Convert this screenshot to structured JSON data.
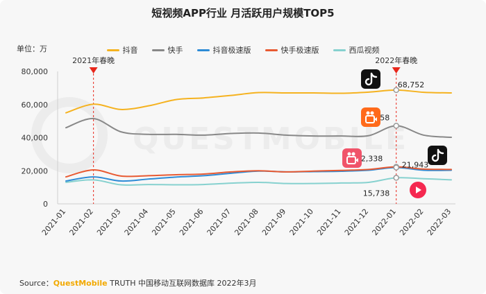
{
  "chart_data": {
    "type": "line",
    "title": "短视频APP行业 月活跃用户规模TOP5",
    "unit_label": "单位：万",
    "categories": [
      "2021-01",
      "2021-02",
      "2021-03",
      "2021-04",
      "2021-05",
      "2021-06",
      "2021-07",
      "2021-08",
      "2021-09",
      "2021-10",
      "2021-11",
      "2021-12",
      "2022-01",
      "2022-02",
      "2022-03"
    ],
    "ylim": [
      0,
      80000
    ],
    "yticks": [
      0,
      20000,
      40000,
      60000,
      80000
    ],
    "ytick_labels": [
      "0",
      "20,000",
      "40,000",
      "60,000",
      "80,000"
    ],
    "grid": false,
    "legend_position": "top-center",
    "series": [
      {
        "name": "抖音",
        "color": "#f5b21f",
        "values": [
          55000,
          60200,
          57000,
          59200,
          63000,
          64000,
          65500,
          67200,
          67000,
          67000,
          66800,
          67500,
          68752,
          67400,
          67000
        ]
      },
      {
        "name": "快手",
        "color": "#888888",
        "values": [
          46000,
          51500,
          43500,
          42000,
          42000,
          41500,
          42500,
          42800,
          41500,
          41000,
          41000,
          41200,
          47158,
          41500,
          40200
        ]
      },
      {
        "name": "抖音极速版",
        "color": "#2d8bd6",
        "values": [
          13800,
          16300,
          13800,
          15000,
          16200,
          17000,
          18500,
          19800,
          19300,
          19500,
          19700,
          20300,
          21943,
          20300,
          20300
        ]
      },
      {
        "name": "快手极速版",
        "color": "#e85a32",
        "values": [
          16300,
          20500,
          16800,
          17000,
          17600,
          18000,
          19300,
          20000,
          19300,
          19800,
          20200,
          20800,
          22338,
          21000,
          20800
        ]
      },
      {
        "name": "西瓜视频",
        "color": "#86d1cf",
        "values": [
          13000,
          14500,
          11500,
          11700,
          11500,
          11700,
          12500,
          13000,
          12300,
          12300,
          12600,
          13000,
          15738,
          15200,
          14500
        ]
      }
    ],
    "annotations": [
      {
        "text": "2021年春晚",
        "category": "2021-02"
      },
      {
        "text": "2022年春晚",
        "category": "2022-01"
      }
    ],
    "data_labels": [
      {
        "series": "抖音",
        "category": "2022-01",
        "text": "68,752"
      },
      {
        "series": "快手",
        "category": "2022-01",
        "text": "47,158"
      },
      {
        "series": "快手极速版",
        "category": "2022-01",
        "text": "22,338"
      },
      {
        "series": "抖音极速版",
        "category": "2022-01",
        "text": "21,943"
      },
      {
        "series": "西瓜视频",
        "category": "2022-01",
        "text": "15,738"
      }
    ],
    "watermark": "QUESTMOBILE"
  },
  "source": {
    "prefix": "Source：",
    "brand": "QuestMobile",
    "rest": " TRUTH 中国移动互联网数据库 2022年3月"
  },
  "app_icons": [
    {
      "name": "douyin-icon",
      "color": "#111111"
    },
    {
      "name": "kuaishou-icon",
      "color": "#ff6a1a"
    },
    {
      "name": "kuaishou-lite-icon",
      "color": "#f0546a"
    },
    {
      "name": "douyin-lite-icon",
      "color": "#111111"
    },
    {
      "name": "xigua-icon",
      "color": "#f52850"
    }
  ]
}
